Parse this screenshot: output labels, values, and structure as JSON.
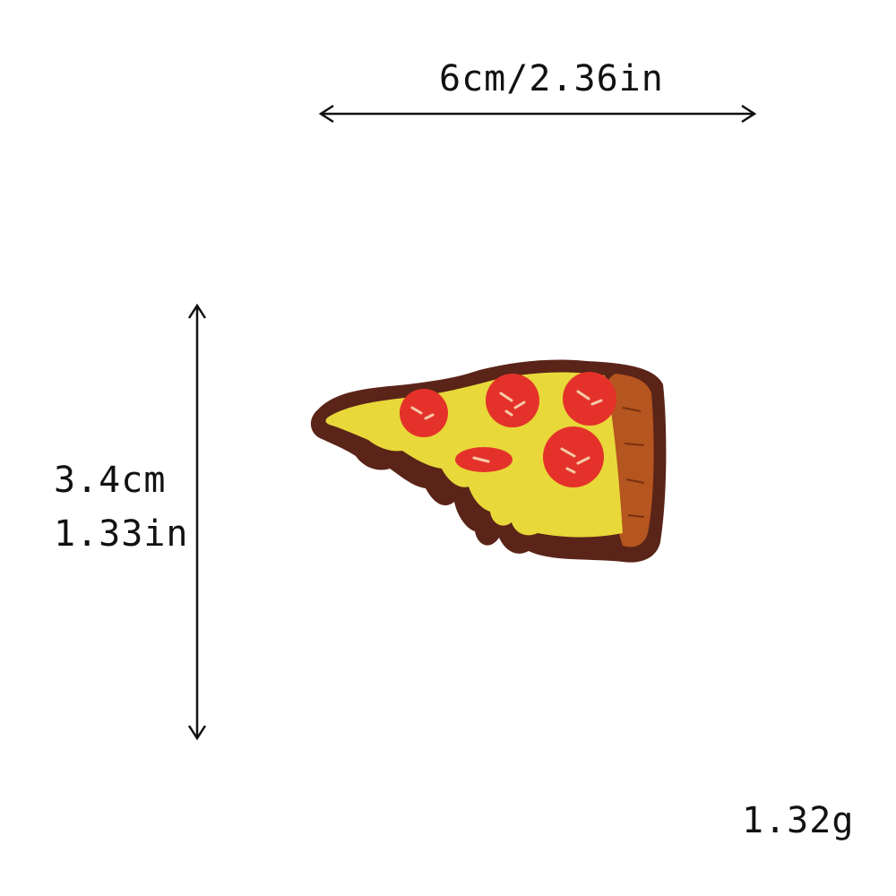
{
  "dimensions": {
    "width_label": "6cm/2.36in",
    "height_cm_label": "3.4cm",
    "height_in_label": "1.33in"
  },
  "weight_label": "1.32g",
  "product": {
    "image": "pizza-slice-embroidered-patch",
    "colors": {
      "border": "#5a2418",
      "cheese": "#e8d83a",
      "crust": "#b5551f",
      "pepperoni": "#e4322a"
    }
  }
}
